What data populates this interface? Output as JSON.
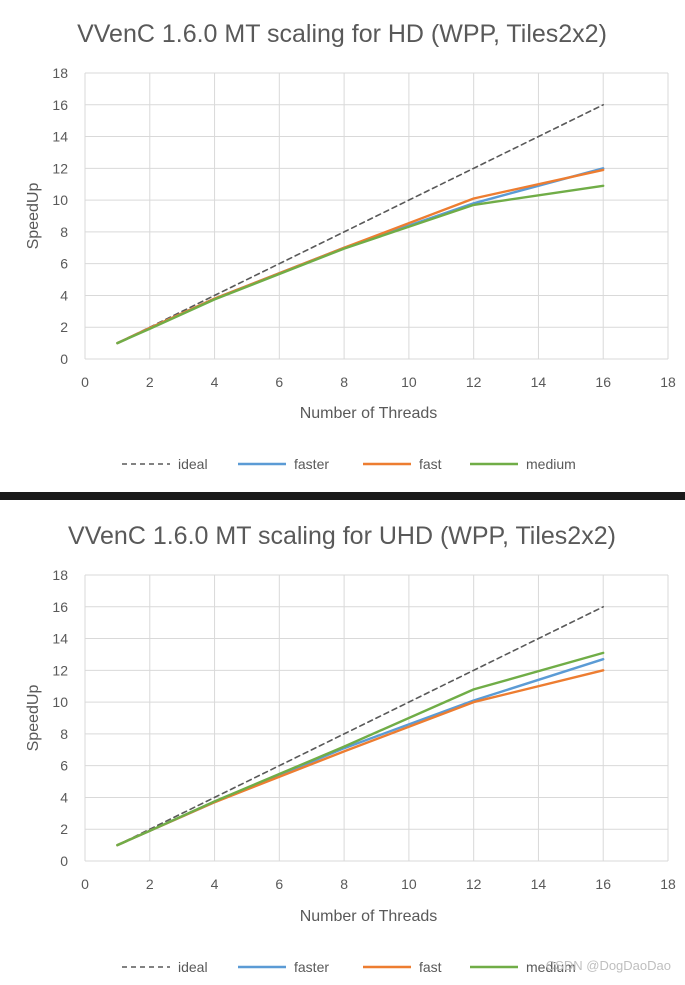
{
  "chart_data": [
    {
      "type": "line",
      "title": "VVenC 1.6.0 MT scaling for HD (WPP, Tiles2x2)",
      "xlabel": "Number  of Threads",
      "ylabel": "SpeedUp",
      "xlim": [
        0,
        18
      ],
      "ylim": [
        0,
        18
      ],
      "xticks": [
        "0",
        "2",
        "4",
        "6",
        "8",
        "10",
        "12",
        "14",
        "16",
        "18"
      ],
      "yticks": [
        "0",
        "2",
        "4",
        "6",
        "8",
        "10",
        "12",
        "14",
        "16",
        "18"
      ],
      "grid": true,
      "legend_position": "bottom",
      "x": [
        1,
        2,
        4,
        8,
        12,
        16
      ],
      "series": [
        {
          "name": "ideal",
          "color": "#595959",
          "dash": "dashed",
          "values": [
            1,
            2,
            4,
            8,
            12,
            16
          ]
        },
        {
          "name": "faster",
          "color": "#5b9bd5",
          "dash": "solid",
          "values": [
            1,
            1.95,
            3.8,
            7.0,
            9.8,
            12.0
          ]
        },
        {
          "name": "fast",
          "color": "#ed7d31",
          "dash": "solid",
          "values": [
            1,
            1.95,
            3.8,
            7.0,
            10.1,
            11.9
          ]
        },
        {
          "name": "medium",
          "color": "#70ad47",
          "dash": "solid",
          "values": [
            1,
            1.9,
            3.75,
            6.95,
            9.7,
            10.9
          ]
        }
      ]
    },
    {
      "type": "line",
      "title": "VVenC 1.6.0 MT scaling for UHD (WPP, Tiles2x2)",
      "xlabel": "Number  of Threads",
      "ylabel": "SpeedUp",
      "xlim": [
        0,
        18
      ],
      "ylim": [
        0,
        18
      ],
      "xticks": [
        "0",
        "2",
        "4",
        "6",
        "8",
        "10",
        "12",
        "14",
        "16",
        "18"
      ],
      "yticks": [
        "0",
        "2",
        "4",
        "6",
        "8",
        "10",
        "12",
        "14",
        "16",
        "18"
      ],
      "grid": true,
      "legend_position": "bottom",
      "x": [
        1,
        2,
        4,
        8,
        12,
        16
      ],
      "series": [
        {
          "name": "ideal",
          "color": "#595959",
          "dash": "dashed",
          "values": [
            1,
            2,
            4,
            8,
            12,
            16
          ]
        },
        {
          "name": "faster",
          "color": "#5b9bd5",
          "dash": "solid",
          "values": [
            1,
            1.9,
            3.7,
            7.1,
            10.1,
            12.7
          ]
        },
        {
          "name": "fast",
          "color": "#ed7d31",
          "dash": "solid",
          "values": [
            1,
            1.9,
            3.7,
            6.9,
            10.0,
            12.0
          ]
        },
        {
          "name": "medium",
          "color": "#70ad47",
          "dash": "solid",
          "values": [
            1,
            1.9,
            3.75,
            7.2,
            10.8,
            13.1
          ]
        }
      ]
    }
  ],
  "watermark": "CSDN @DogDaoDao"
}
